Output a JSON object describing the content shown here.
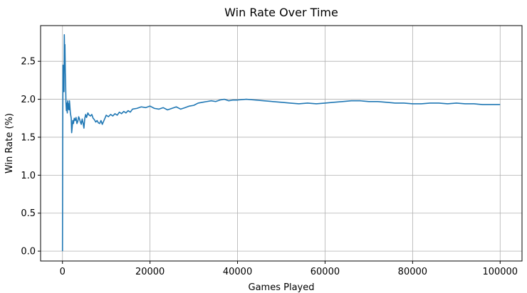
{
  "chart_data": {
    "type": "line",
    "title": "Win Rate Over Time",
    "xlabel": "Games Played",
    "ylabel": "Win Rate (%)",
    "xlim": [
      -5000,
      105000
    ],
    "ylim": [
      -0.13,
      2.97
    ],
    "xticks": [
      0,
      20000,
      40000,
      60000,
      80000,
      100000
    ],
    "xtick_labels": [
      "0",
      "20000",
      "40000",
      "60000",
      "80000",
      "100000"
    ],
    "yticks": [
      0.0,
      0.5,
      1.0,
      1.5,
      2.0,
      2.5
    ],
    "ytick_labels": [
      "0.0",
      "0.5",
      "1.0",
      "1.5",
      "2.0",
      "2.5"
    ],
    "grid": true,
    "color": "#1f77b4",
    "series": [
      {
        "x": [
          0,
          60,
          120,
          200,
          280,
          350,
          420,
          500,
          560,
          650,
          720,
          800,
          900,
          1000,
          1100,
          1200,
          1300,
          1400,
          1500,
          1600,
          1800,
          2000,
          2100,
          2200,
          2350,
          2500,
          2700,
          2900,
          3100,
          3300,
          3500,
          3700,
          3900,
          4100,
          4300,
          4500,
          4700,
          4900,
          5100,
          5300,
          5500,
          5800,
          6100,
          6400,
          6700,
          7000,
          7300,
          7600,
          7900,
          8200,
          8500,
          8800,
          9100,
          9400,
          9700,
          10000,
          10500,
          11000,
          11500,
          12000,
          12500,
          13000,
          13500,
          14000,
          14500,
          15000,
          15500,
          16000,
          17000,
          18000,
          19000,
          20000,
          21000,
          22000,
          23000,
          24000,
          25000,
          26000,
          27000,
          28000,
          29000,
          30000,
          31000,
          32000,
          33000,
          34000,
          35000,
          36000,
          37000,
          38000,
          39000,
          40000,
          42000,
          44000,
          46000,
          48000,
          50000,
          52000,
          54000,
          56000,
          58000,
          60000,
          62000,
          64000,
          66000,
          68000,
          70000,
          72000,
          74000,
          76000,
          78000,
          80000,
          82000,
          84000,
          86000,
          88000,
          90000,
          92000,
          94000,
          96000,
          98000,
          100000
        ],
        "y": [
          0.0,
          1.6,
          2.45,
          2.2,
          2.35,
          2.1,
          2.85,
          2.55,
          2.72,
          2.35,
          2.2,
          1.95,
          1.85,
          1.95,
          1.82,
          1.98,
          1.87,
          1.94,
          1.86,
          1.98,
          1.82,
          1.75,
          1.56,
          1.62,
          1.72,
          1.68,
          1.75,
          1.72,
          1.76,
          1.68,
          1.71,
          1.77,
          1.74,
          1.7,
          1.67,
          1.74,
          1.69,
          1.62,
          1.75,
          1.8,
          1.76,
          1.82,
          1.79,
          1.78,
          1.8,
          1.75,
          1.73,
          1.7,
          1.72,
          1.69,
          1.68,
          1.72,
          1.67,
          1.71,
          1.75,
          1.79,
          1.77,
          1.8,
          1.78,
          1.81,
          1.79,
          1.83,
          1.81,
          1.84,
          1.82,
          1.85,
          1.83,
          1.87,
          1.88,
          1.9,
          1.89,
          1.91,
          1.88,
          1.87,
          1.89,
          1.86,
          1.88,
          1.9,
          1.87,
          1.89,
          1.91,
          1.92,
          1.95,
          1.96,
          1.97,
          1.98,
          1.97,
          1.99,
          2.0,
          1.98,
          1.99,
          1.99,
          2.0,
          1.99,
          1.98,
          1.97,
          1.96,
          1.95,
          1.94,
          1.95,
          1.94,
          1.95,
          1.96,
          1.97,
          1.98,
          1.98,
          1.97,
          1.97,
          1.96,
          1.95,
          1.95,
          1.94,
          1.94,
          1.95,
          1.95,
          1.94,
          1.95,
          1.94,
          1.94,
          1.93,
          1.93,
          1.93
        ]
      }
    ]
  }
}
